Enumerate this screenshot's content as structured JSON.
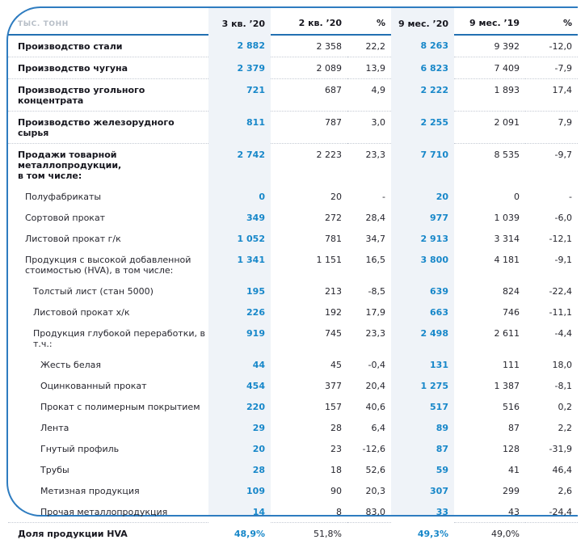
{
  "unit_label": "тыс. тонн",
  "colors": {
    "frame_border": "#2e7cc0",
    "header_underline": "#2270b2",
    "accent_value_blue": "#1787c9",
    "highlight_column_bg": "#eff3f8",
    "text_dark": "#17171f",
    "unit_label_gray": "#b7bec7",
    "row_separator": "#c4cad3"
  },
  "table": {
    "columns": [
      "3 кв. ’20",
      "2 кв. ’20",
      "%",
      "9 мес. ’20",
      "9 мес. ’19",
      "%"
    ],
    "highlight_columns": [
      0,
      3
    ],
    "rows": [
      {
        "label": "Производство стали",
        "level": 0,
        "bold": true,
        "sep": true,
        "values": [
          "2 882",
          "2 358",
          "22,2",
          "8 263",
          "9 392",
          "-12,0"
        ]
      },
      {
        "label": "Производство чугуна",
        "level": 0,
        "bold": true,
        "sep": true,
        "values": [
          "2 379",
          "2 089",
          "13,9",
          "6 823",
          "7 409",
          "-7,9"
        ]
      },
      {
        "label": "Производство угольного концентрата",
        "level": 0,
        "bold": true,
        "sep": true,
        "values": [
          "721",
          "687",
          "4,9",
          "2 222",
          "1 893",
          "17,4"
        ]
      },
      {
        "label": "Производство железорудного сырья",
        "level": 0,
        "bold": true,
        "sep": true,
        "values": [
          "811",
          "787",
          "3,0",
          "2 255",
          "2 091",
          "7,9"
        ]
      },
      {
        "label": "Продажи товарной металлопродукции,\nв том числе:",
        "level": 0,
        "bold": true,
        "sep": false,
        "values": [
          "2 742",
          "2 223",
          "23,3",
          "7 710",
          "8 535",
          "-9,7"
        ]
      },
      {
        "label": "Полуфабрикаты",
        "level": 1,
        "bold": false,
        "sep": false,
        "values": [
          "0",
          "20",
          "-",
          "20",
          "0",
          "-"
        ]
      },
      {
        "label": "Сортовой прокат",
        "level": 1,
        "bold": false,
        "sep": false,
        "values": [
          "349",
          "272",
          "28,4",
          "977",
          "1 039",
          "-6,0"
        ]
      },
      {
        "label": "Листовой прокат г/к",
        "level": 1,
        "bold": false,
        "sep": false,
        "values": [
          "1 052",
          "781",
          "34,7",
          "2 913",
          "3 314",
          "-12,1"
        ]
      },
      {
        "label": "Продукция с высокой добавленной\nстоимостью (HVA), в том числе:",
        "level": 1,
        "bold": false,
        "sep": false,
        "values": [
          "1 341",
          "1 151",
          "16,5",
          "3 800",
          "4 181",
          "-9,1"
        ]
      },
      {
        "label": "Толстый лист (стан 5000)",
        "level": 2,
        "bold": false,
        "sep": false,
        "values": [
          "195",
          "213",
          "-8,5",
          "639",
          "824",
          "-22,4"
        ]
      },
      {
        "label": "Листовой прокат х/к",
        "level": 2,
        "bold": false,
        "sep": false,
        "values": [
          "226",
          "192",
          "17,9",
          "663",
          "746",
          "-11,1"
        ]
      },
      {
        "label": "Продукция глубокой переработки, в т.ч.:",
        "level": 2,
        "bold": false,
        "sep": false,
        "values": [
          "919",
          "745",
          "23,3",
          "2 498",
          "2 611",
          "-4,4"
        ]
      },
      {
        "label": "Жесть белая",
        "level": 3,
        "bold": false,
        "sep": false,
        "values": [
          "44",
          "45",
          "-0,4",
          "131",
          "111",
          "18,0"
        ]
      },
      {
        "label": "Оцинкованный прокат",
        "level": 3,
        "bold": false,
        "sep": false,
        "values": [
          "454",
          "377",
          "20,4",
          "1 275",
          "1 387",
          "-8,1"
        ]
      },
      {
        "label": "Прокат с полимерным покрытием",
        "level": 3,
        "bold": false,
        "sep": false,
        "values": [
          "220",
          "157",
          "40,6",
          "517",
          "516",
          "0,2"
        ]
      },
      {
        "label": "Лента",
        "level": 3,
        "bold": false,
        "sep": false,
        "values": [
          "29",
          "28",
          "6,4",
          "89",
          "87",
          "2,2"
        ]
      },
      {
        "label": "Гнутый профиль",
        "level": 3,
        "bold": false,
        "sep": false,
        "values": [
          "20",
          "23",
          "-12,6",
          "87",
          "128",
          "-31,9"
        ]
      },
      {
        "label": "Трубы",
        "level": 3,
        "bold": false,
        "sep": false,
        "values": [
          "28",
          "18",
          "52,6",
          "59",
          "41",
          "46,4"
        ]
      },
      {
        "label": "Метизная продукция",
        "level": 3,
        "bold": false,
        "sep": false,
        "values": [
          "109",
          "90",
          "20,3",
          "307",
          "299",
          "2,6"
        ]
      },
      {
        "label": "Прочая металлопродукция",
        "level": 3,
        "bold": false,
        "sep": true,
        "values": [
          "14",
          "8",
          "83,0",
          "33",
          "43",
          "-24,4"
        ]
      },
      {
        "label": "Доля продукции HVA",
        "level": 0,
        "bold": true,
        "sep": false,
        "values": [
          "48,9%",
          "51,8%",
          "",
          "49,3%",
          "49,0%",
          ""
        ]
      }
    ]
  }
}
